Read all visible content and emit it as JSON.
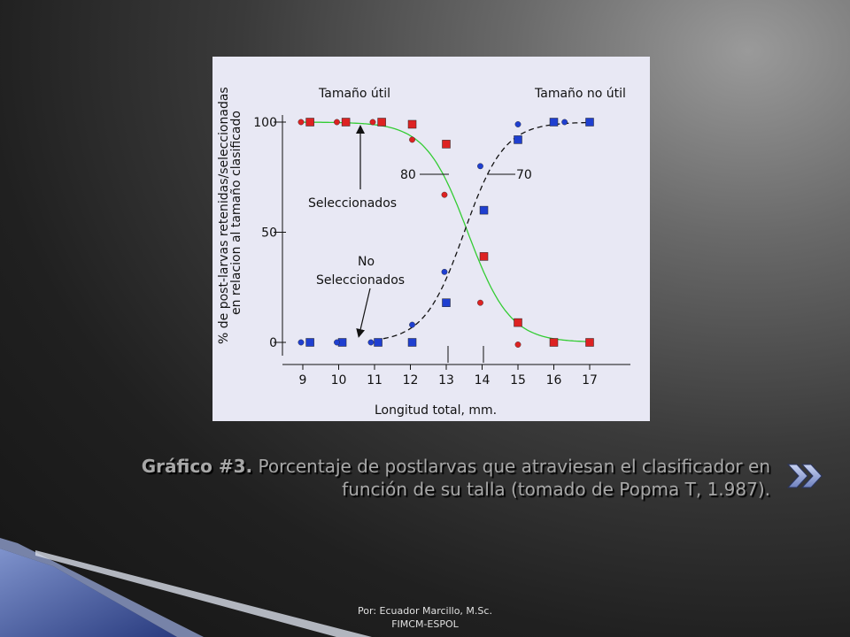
{
  "caption": {
    "label": "Gráfico #3.",
    "line1": "Porcentaje de postlarvas que atraviesan el clasificador en",
    "line2": "función de su  talla (tomado de Popma T, 1.987)."
  },
  "footer": {
    "line1": "Por: Ecuador Marcillo, M.Sc.",
    "line2": "FIMCM-ESPOL"
  },
  "nav": {
    "next_icon": "double-chevron-right-icon"
  },
  "colors": {
    "selected": "#dd2222",
    "not_selected": "#1f3fd0",
    "fit_curve": "#33cc33",
    "panel": "#e8e8f4"
  },
  "chart_data": {
    "type": "scatter",
    "xlabel": "Longitud total, mm.",
    "ylabel_line1": "% de post-larvas retenidas/seleccionadas",
    "ylabel_line2": "en relacion al tamaño clasificado",
    "x_ticks": [
      9,
      10,
      11,
      12,
      13,
      14,
      15,
      16,
      17
    ],
    "y_ticks": [
      0,
      50,
      100
    ],
    "xlim": [
      8.6,
      17.6
    ],
    "ylim": [
      -10,
      105
    ],
    "grid": false,
    "annotations": {
      "useful": "Tamaño útil",
      "not_useful": "Tamaño no útil",
      "selected": "Seleccionados",
      "not_selected_1": "No",
      "not_selected_2": "Seleccionados",
      "p80": "80",
      "p70": "70"
    },
    "series": [
      {
        "marker": "square",
        "color": "#dd2222",
        "points": [
          [
            9.2,
            100
          ],
          [
            10.2,
            100
          ],
          [
            11.2,
            100
          ],
          [
            12.05,
            99
          ],
          [
            13.0,
            90
          ],
          [
            14.05,
            39
          ],
          [
            15.0,
            9
          ],
          [
            16.0,
            0
          ],
          [
            17.0,
            0
          ]
        ]
      },
      {
        "marker": "circle",
        "color": "#dd2222",
        "points": [
          [
            8.95,
            100
          ],
          [
            9.95,
            100
          ],
          [
            10.95,
            100
          ],
          [
            12.05,
            92
          ],
          [
            12.95,
            67
          ],
          [
            13.95,
            18
          ],
          [
            15.0,
            -1
          ]
        ]
      },
      {
        "marker": "square",
        "color": "#1f3fd0",
        "points": [
          [
            9.2,
            0
          ],
          [
            10.1,
            0
          ],
          [
            11.1,
            0
          ],
          [
            12.05,
            0
          ],
          [
            13.0,
            18
          ],
          [
            14.05,
            60
          ],
          [
            15.0,
            92
          ],
          [
            16.0,
            100
          ],
          [
            17.0,
            100
          ]
        ]
      },
      {
        "marker": "circle",
        "color": "#1f3fd0",
        "points": [
          [
            8.95,
            0
          ],
          [
            9.95,
            0
          ],
          [
            10.9,
            0
          ],
          [
            12.05,
            8
          ],
          [
            12.95,
            32
          ],
          [
            13.95,
            80
          ],
          [
            15.0,
            99
          ],
          [
            16.3,
            100
          ]
        ]
      }
    ],
    "curves": [
      {
        "style": "solid",
        "color": "#33cc33",
        "midpoint": 13.6,
        "slope": 1.7,
        "direction": "decreasing",
        "x_range": [
          9.0,
          17.0
        ]
      },
      {
        "style": "dashed",
        "color": "#111111",
        "midpoint": 13.5,
        "slope": 1.8,
        "direction": "increasing",
        "x_range": [
          11.0,
          17.0
        ]
      }
    ]
  }
}
